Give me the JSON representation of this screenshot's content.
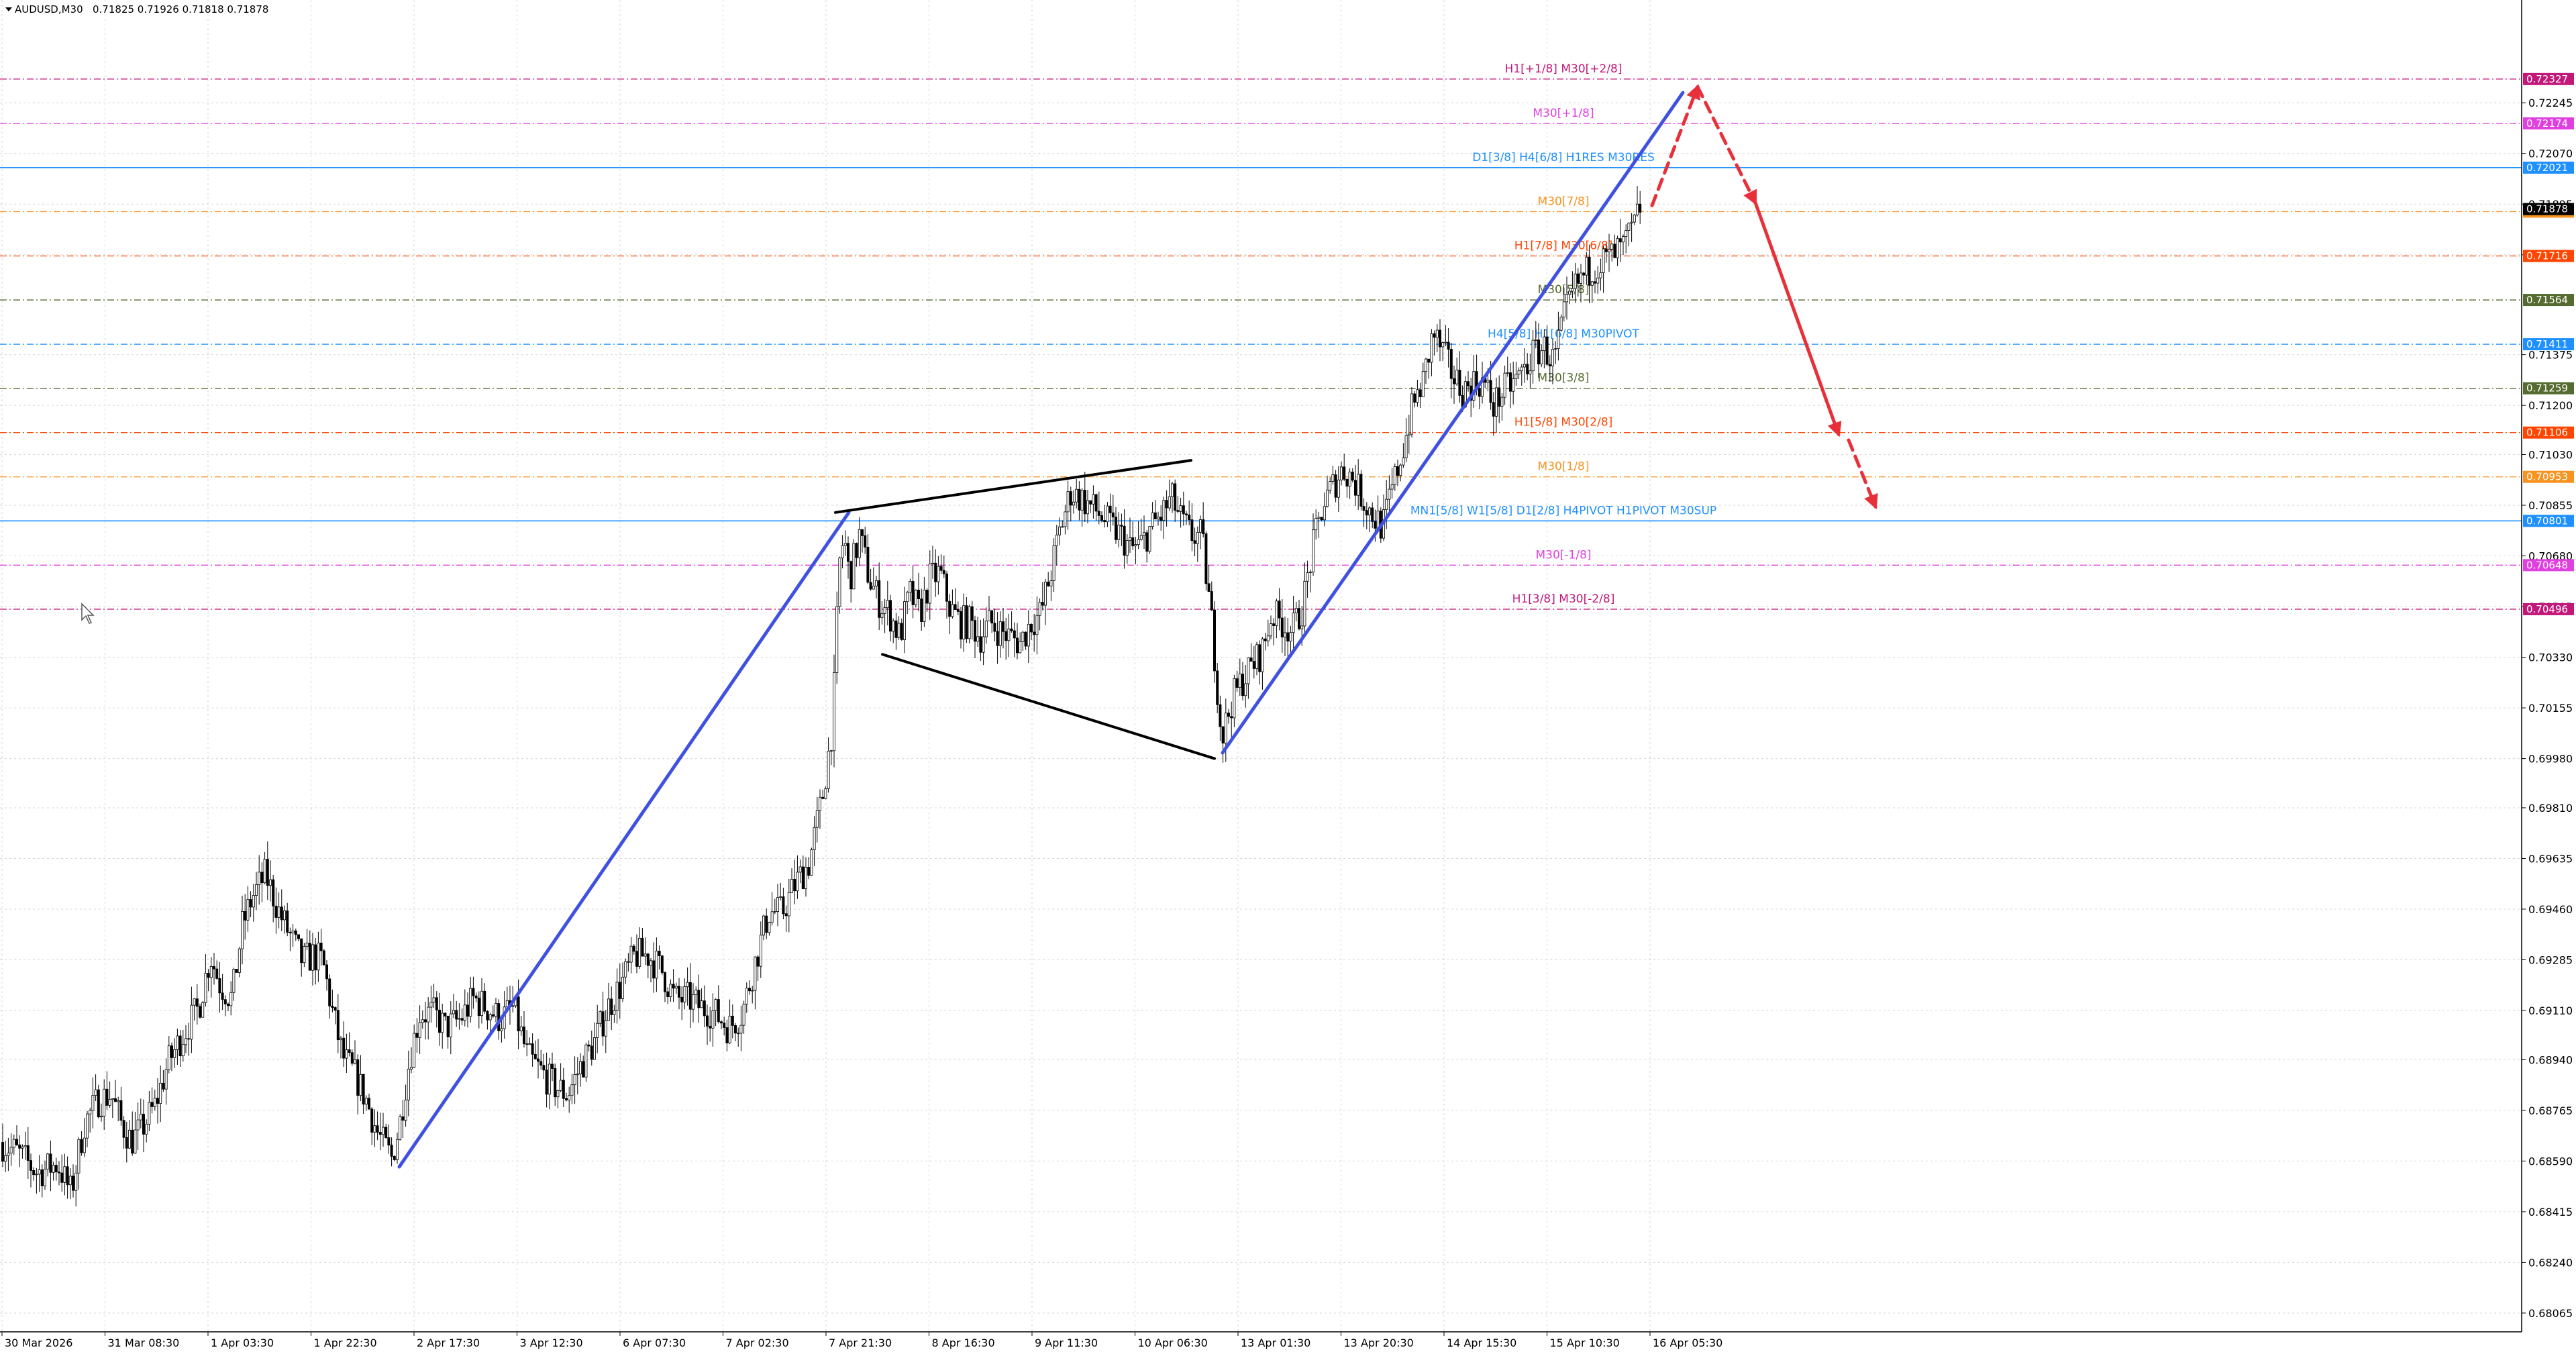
{
  "window": {
    "symbol": "AUDUSD,M30",
    "ohlc": "0.71825 0.71926 0.71818 0.71878"
  },
  "chart_data": {
    "type": "candlestick",
    "symbol": "AUDUSD",
    "timeframe": "M30",
    "ylim": [
      0.68,
      0.726
    ],
    "y_ticks": [
      "0.72245",
      "0.72070",
      "0.71895",
      "0.71720",
      "0.71375",
      "0.71200",
      "0.71030",
      "0.70855",
      "0.70680",
      "0.70505",
      "0.70330",
      "0.70155",
      "0.69980",
      "0.69810",
      "0.69635",
      "0.69460",
      "0.69285",
      "0.69110",
      "0.68940",
      "0.68765",
      "0.68590",
      "0.68415",
      "0.68240",
      "0.68065"
    ],
    "x_ticks": [
      "30 Mar 2026",
      "31 Mar 08:30",
      "1 Apr 03:30",
      "1 Apr 22:30",
      "2 Apr 17:30",
      "3 Apr 12:30",
      "6 Apr 07:30",
      "7 Apr 02:30",
      "7 Apr 21:30",
      "8 Apr 16:30",
      "9 Apr 11:30",
      "10 Apr 06:30",
      "13 Apr 01:30",
      "13 Apr 20:30",
      "14 Apr 15:30",
      "15 Apr 10:30",
      "16 Apr 05:30"
    ],
    "price_tags": [
      {
        "value": "0.72327",
        "color": "#c2187a"
      },
      {
        "value": "0.72174",
        "color": "#e040e0"
      },
      {
        "value": "0.72021",
        "color": "#1e90ff"
      },
      {
        "value": "0.71869",
        "color": "#f7931e"
      },
      {
        "value": "0.71716",
        "color": "#ff4500"
      },
      {
        "value": "0.71564",
        "color": "#556b2f"
      },
      {
        "value": "0.71411",
        "color": "#1e90ff"
      },
      {
        "value": "0.71259",
        "color": "#556b2f"
      },
      {
        "value": "0.71106",
        "color": "#ff4500"
      },
      {
        "value": "0.70953",
        "color": "#f7931e"
      },
      {
        "value": "0.70801",
        "color": "#1e90ff"
      },
      {
        "value": "0.70648",
        "color": "#e040e0"
      },
      {
        "value": "0.70496",
        "color": "#c2187a"
      },
      {
        "value": "0.71878",
        "color": "#000000"
      }
    ],
    "levels": [
      {
        "price": 0.72327,
        "label": "H1[+1/8] M30[+2/8]",
        "color": "#c2187a",
        "style": "dash"
      },
      {
        "price": 0.72174,
        "label": "M30[+1/8]",
        "color": "#e040e0",
        "style": "dash"
      },
      {
        "price": 0.72021,
        "label": "D1[3/8] H4[6/8] H1RES M30RES",
        "color": "#1e90ff",
        "style": "solid"
      },
      {
        "price": 0.71869,
        "label": "M30[7/8]",
        "color": "#f7931e",
        "style": "dash"
      },
      {
        "price": 0.71716,
        "label": "H1[7/8] M30[6/8]",
        "color": "#ff4500",
        "style": "dash"
      },
      {
        "price": 0.71564,
        "label": "M30[5/8]",
        "color": "#556b2f",
        "style": "dash"
      },
      {
        "price": 0.71411,
        "label": "H4[5/8] H1[6/8] M30PIVOT",
        "color": "#1e90ff",
        "style": "dash"
      },
      {
        "price": 0.71259,
        "label": "M30[3/8]",
        "color": "#556b2f",
        "style": "dash"
      },
      {
        "price": 0.71106,
        "label": "H1[5/8] M30[2/8]",
        "color": "#ff4500",
        "style": "dash"
      },
      {
        "price": 0.70953,
        "label": "M30[1/8]",
        "color": "#f7931e",
        "style": "dash"
      },
      {
        "price": 0.70801,
        "label": "MN1[5/8] W1[5/8] D1[2/8] H4PIVOT H1PIVOT M30SUP",
        "color": "#1e90ff",
        "style": "solid"
      },
      {
        "price": 0.70648,
        "label": "M30[-1/8]",
        "color": "#e040e0",
        "style": "dash"
      },
      {
        "price": 0.70496,
        "label": "H1[3/8] M30[-2/8]",
        "color": "#c2187a",
        "style": "dash"
      }
    ],
    "price_path": [
      [
        0,
        0.6866
      ],
      [
        30,
        0.6862
      ],
      [
        60,
        0.6855
      ],
      [
        90,
        0.6858
      ],
      [
        110,
        0.6848
      ],
      [
        130,
        0.6872
      ],
      [
        150,
        0.688
      ],
      [
        170,
        0.6882
      ],
      [
        185,
        0.6872
      ],
      [
        200,
        0.6866
      ],
      [
        215,
        0.687
      ],
      [
        235,
        0.6878
      ],
      [
        255,
        0.6893
      ],
      [
        275,
        0.6902
      ],
      [
        300,
        0.6912
      ],
      [
        318,
        0.693
      ],
      [
        332,
        0.692
      ],
      [
        350,
        0.6915
      ],
      [
        365,
        0.694
      ],
      [
        380,
        0.695
      ],
      [
        400,
        0.6958
      ],
      [
        420,
        0.6945
      ],
      [
        440,
        0.6935
      ],
      [
        455,
        0.6928
      ],
      [
        470,
        0.693
      ],
      [
        485,
        0.6928
      ],
      [
        500,
        0.691
      ],
      [
        515,
        0.6895
      ],
      [
        535,
        0.6888
      ],
      [
        550,
        0.688
      ],
      [
        568,
        0.6868
      ],
      [
        588,
        0.686
      ],
      [
        600,
        0.6872
      ],
      [
        615,
        0.6895
      ],
      [
        630,
        0.691
      ],
      [
        650,
        0.691
      ],
      [
        668,
        0.6905
      ],
      [
        690,
        0.6908
      ],
      [
        710,
        0.6915
      ],
      [
        730,
        0.6912
      ],
      [
        750,
        0.6908
      ],
      [
        770,
        0.6912
      ],
      [
        790,
        0.6895
      ],
      [
        810,
        0.689
      ],
      [
        830,
        0.6885
      ],
      [
        850,
        0.6882
      ],
      [
        870,
        0.6892
      ],
      [
        890,
        0.69
      ],
      [
        910,
        0.6912
      ],
      [
        930,
        0.692
      ],
      [
        950,
        0.693
      ],
      [
        970,
        0.693
      ],
      [
        990,
        0.6925
      ],
      [
        1010,
        0.6915
      ],
      [
        1030,
        0.6915
      ],
      [
        1050,
        0.6912
      ],
      [
        1070,
        0.691
      ],
      [
        1090,
        0.6905
      ],
      [
        1110,
        0.691
      ],
      [
        1130,
        0.6928
      ],
      [
        1150,
        0.6945
      ],
      [
        1170,
        0.6945
      ],
      [
        1190,
        0.6955
      ],
      [
        1210,
        0.6962
      ],
      [
        1230,
        0.6985
      ],
      [
        1245,
        0.701
      ],
      [
        1255,
        0.7065
      ],
      [
        1262,
        0.7075
      ],
      [
        1270,
        0.706
      ],
      [
        1285,
        0.7075
      ],
      [
        1300,
        0.706
      ],
      [
        1315,
        0.7052
      ],
      [
        1330,
        0.7048
      ],
      [
        1345,
        0.704
      ],
      [
        1360,
        0.7055
      ],
      [
        1375,
        0.7048
      ],
      [
        1390,
        0.706
      ],
      [
        1405,
        0.7062
      ],
      [
        1420,
        0.705
      ],
      [
        1435,
        0.7045
      ],
      [
        1450,
        0.7045
      ],
      [
        1465,
        0.704
      ],
      [
        1480,
        0.7045
      ],
      [
        1495,
        0.7042
      ],
      [
        1510,
        0.704
      ],
      [
        1525,
        0.7038
      ],
      [
        1540,
        0.7045
      ],
      [
        1555,
        0.7048
      ],
      [
        1570,
        0.7062
      ],
      [
        1585,
        0.7078
      ],
      [
        1600,
        0.709
      ],
      [
        1615,
        0.7088
      ],
      [
        1630,
        0.7085
      ],
      [
        1645,
        0.7082
      ],
      [
        1660,
        0.7078
      ],
      [
        1675,
        0.7075
      ],
      [
        1690,
        0.707
      ],
      [
        1705,
        0.7072
      ],
      [
        1720,
        0.7078
      ],
      [
        1735,
        0.7082
      ],
      [
        1750,
        0.7088
      ],
      [
        1765,
        0.708
      ],
      [
        1780,
        0.7075
      ],
      [
        1795,
        0.7075
      ],
      [
        1810,
        0.7045
      ],
      [
        1825,
        0.7005
      ],
      [
        1840,
        0.7018
      ],
      [
        1855,
        0.7025
      ],
      [
        1870,
        0.703
      ],
      [
        1885,
        0.7035
      ],
      [
        1900,
        0.7048
      ],
      [
        1915,
        0.7045
      ],
      [
        1930,
        0.7042
      ],
      [
        1945,
        0.705
      ],
      [
        1960,
        0.707
      ],
      [
        1975,
        0.7085
      ],
      [
        1990,
        0.7092
      ],
      [
        2005,
        0.7098
      ],
      [
        2020,
        0.7095
      ],
      [
        2035,
        0.7088
      ],
      [
        2050,
        0.7082
      ],
      [
        2065,
        0.7078
      ],
      [
        2080,
        0.7092
      ],
      [
        2095,
        0.7105
      ],
      [
        2110,
        0.712
      ],
      [
        2125,
        0.7128
      ],
      [
        2140,
        0.7145
      ],
      [
        2155,
        0.7138
      ],
      [
        2170,
        0.713
      ],
      [
        2185,
        0.7125
      ],
      [
        2200,
        0.7128
      ],
      [
        2215,
        0.7128
      ],
      [
        2230,
        0.712
      ],
      [
        2245,
        0.7125
      ],
      [
        2260,
        0.7128
      ],
      [
        2275,
        0.7132
      ],
      [
        2290,
        0.7138
      ],
      [
        2305,
        0.714
      ],
      [
        2320,
        0.7135
      ],
      [
        2335,
        0.715
      ],
      [
        2350,
        0.716
      ],
      [
        2365,
        0.7165
      ],
      [
        2380,
        0.7168
      ],
      [
        2395,
        0.717
      ],
      [
        2410,
        0.7172
      ],
      [
        2425,
        0.7175
      ],
      [
        2440,
        0.7182
      ],
      [
        2450,
        0.719
      ]
    ],
    "annotations": [
      {
        "name": "uptrend-line-1",
        "color": "#3f51e0",
        "style": "solid",
        "points": [
          [
            595,
            0.6857
          ],
          [
            1265,
            0.7083
          ]
        ]
      },
      {
        "name": "upper-wedge-line",
        "color": "#000000",
        "style": "solid",
        "points": [
          [
            1245,
            0.7083
          ],
          [
            1775,
            0.7101
          ]
        ]
      },
      {
        "name": "lower-wedge-line",
        "color": "#000000",
        "style": "solid",
        "points": [
          [
            1315,
            0.7034
          ],
          [
            1810,
            0.6998
          ]
        ]
      },
      {
        "name": "uptrend-line-2",
        "color": "#3f51e0",
        "style": "solid",
        "points": [
          [
            1822,
            0.7
          ],
          [
            2508,
            0.7228
          ]
        ]
      },
      {
        "name": "forecast-up-dashed",
        "color": "#e8303a",
        "style": "dash",
        "arrow": true,
        "points": [
          [
            2462,
            0.7189
          ],
          [
            2530,
            0.723
          ]
        ]
      },
      {
        "name": "forecast-down-dashed-1",
        "color": "#e8303a",
        "style": "dash",
        "arrow": true,
        "points": [
          [
            2530,
            0.723
          ],
          [
            2616,
            0.719
          ]
        ]
      },
      {
        "name": "forecast-down-solid",
        "color": "#e8303a",
        "style": "solid",
        "arrow": true,
        "points": [
          [
            2616,
            0.719
          ],
          [
            2740,
            0.711
          ]
        ]
      },
      {
        "name": "forecast-down-dashed-2",
        "color": "#e8303a",
        "style": "dash",
        "arrow": true,
        "points": [
          [
            2755,
            0.7108
          ],
          [
            2795,
            0.7085
          ]
        ]
      }
    ]
  }
}
